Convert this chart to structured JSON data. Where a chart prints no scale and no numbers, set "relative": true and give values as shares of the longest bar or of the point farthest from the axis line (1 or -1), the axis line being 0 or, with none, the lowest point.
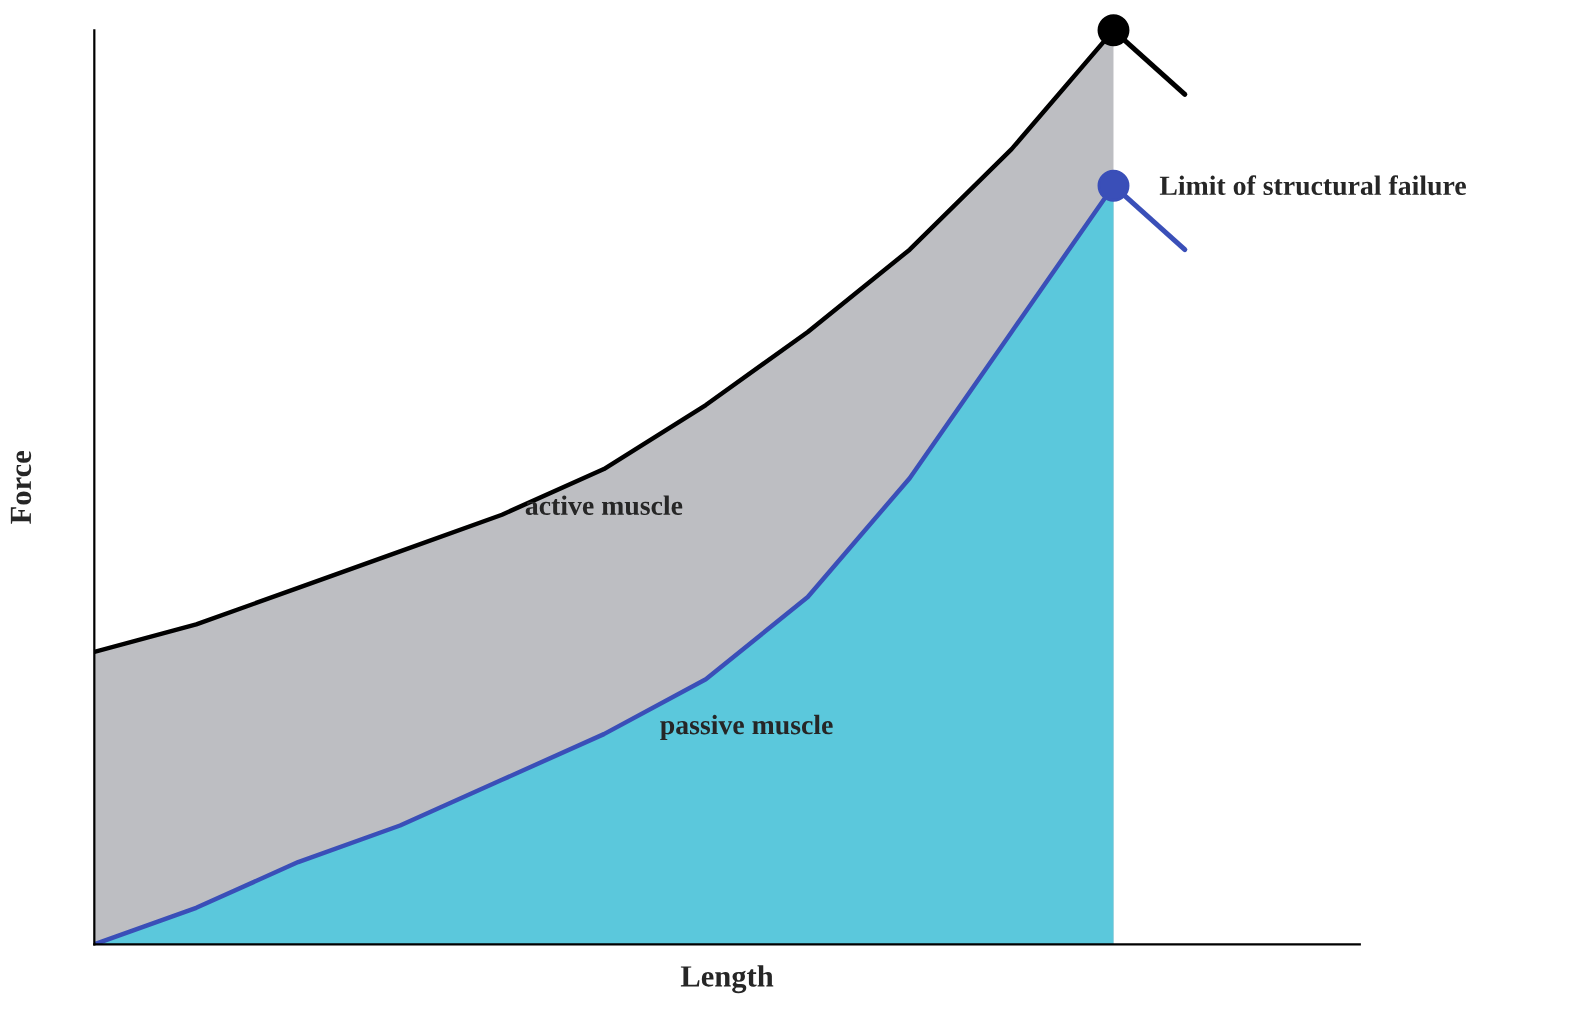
{
  "chart_data": {
    "type": "area",
    "relative": true,
    "xlabel": "Length",
    "ylabel": "Force",
    "annotations": [
      "Limit of structural failure",
      "active muscle",
      "passive muscle"
    ],
    "categories": [
      null,
      null,
      null,
      null,
      null,
      null,
      null,
      null,
      null,
      null,
      null
    ],
    "series": [
      {
        "color": "#bdbec2",
        "values": [
          0.32,
          0.35,
          0.39,
          0.43,
          0.47,
          0.52,
          0.59,
          0.67,
          0.76,
          0.87,
          1.0
        ]
      },
      {
        "color": "#5bc8dc",
        "values": [
          0,
          0.04,
          0.09,
          0.13,
          0.18,
          0.23,
          0.29,
          0.38,
          0.51,
          0.67,
          0.83
        ]
      }
    ]
  }
}
